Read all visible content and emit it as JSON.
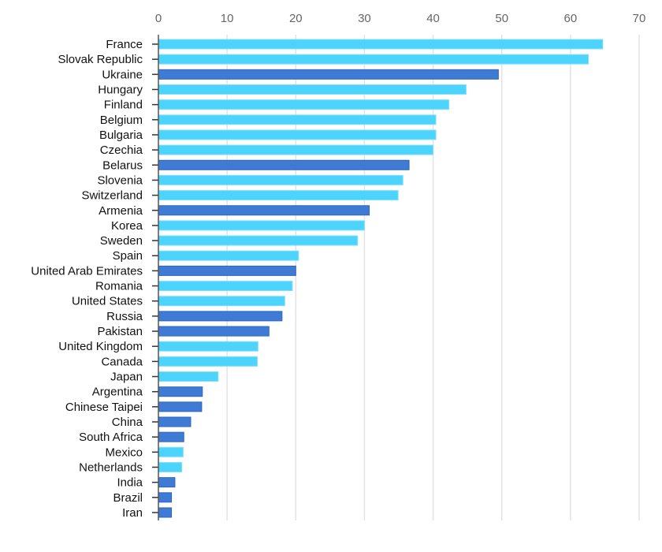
{
  "chart_data": {
    "type": "bar",
    "orientation": "horizontal",
    "title": "",
    "xlabel": "",
    "ylabel": "",
    "xlim": [
      0,
      70
    ],
    "x_ticks": [
      0,
      10,
      20,
      30,
      40,
      50,
      60,
      70
    ],
    "x_axis_position": "top",
    "grid": true,
    "colors": {
      "light": "#4dd4fc",
      "dark": "#3f7bd4",
      "grid": "#e3e3e3"
    },
    "categories": [
      "France",
      "Slovak Republic",
      "Ukraine",
      "Hungary",
      "Finland",
      "Belgium",
      "Bulgaria",
      "Czechia",
      "Belarus",
      "Slovenia",
      "Switzerland",
      "Armenia",
      "Korea",
      "Sweden",
      "Spain",
      "United Arab Emirates",
      "Romania",
      "United States",
      "Russia",
      "Pakistan",
      "United Kingdom",
      "Canada",
      "Japan",
      "Argentina",
      "Chinese Taipei",
      "China",
      "South Africa",
      "Mexico",
      "Netherlands",
      "India",
      "Brazil",
      "Iran"
    ],
    "values": [
      64.7,
      62.6,
      49.5,
      44.8,
      42.3,
      40.4,
      40.4,
      40.0,
      36.5,
      35.6,
      34.9,
      30.7,
      30.0,
      29.0,
      20.4,
      20.0,
      19.5,
      18.4,
      18.0,
      16.1,
      14.5,
      14.4,
      8.7,
      6.4,
      6.3,
      4.7,
      3.7,
      3.6,
      3.4,
      2.4,
      1.9,
      1.9
    ],
    "bar_color_group": [
      "light",
      "light",
      "dark",
      "light",
      "light",
      "light",
      "light",
      "light",
      "dark",
      "light",
      "light",
      "dark",
      "light",
      "light",
      "light",
      "dark",
      "light",
      "light",
      "dark",
      "dark",
      "light",
      "light",
      "light",
      "dark",
      "dark",
      "dark",
      "dark",
      "light",
      "light",
      "dark",
      "dark",
      "dark"
    ]
  }
}
